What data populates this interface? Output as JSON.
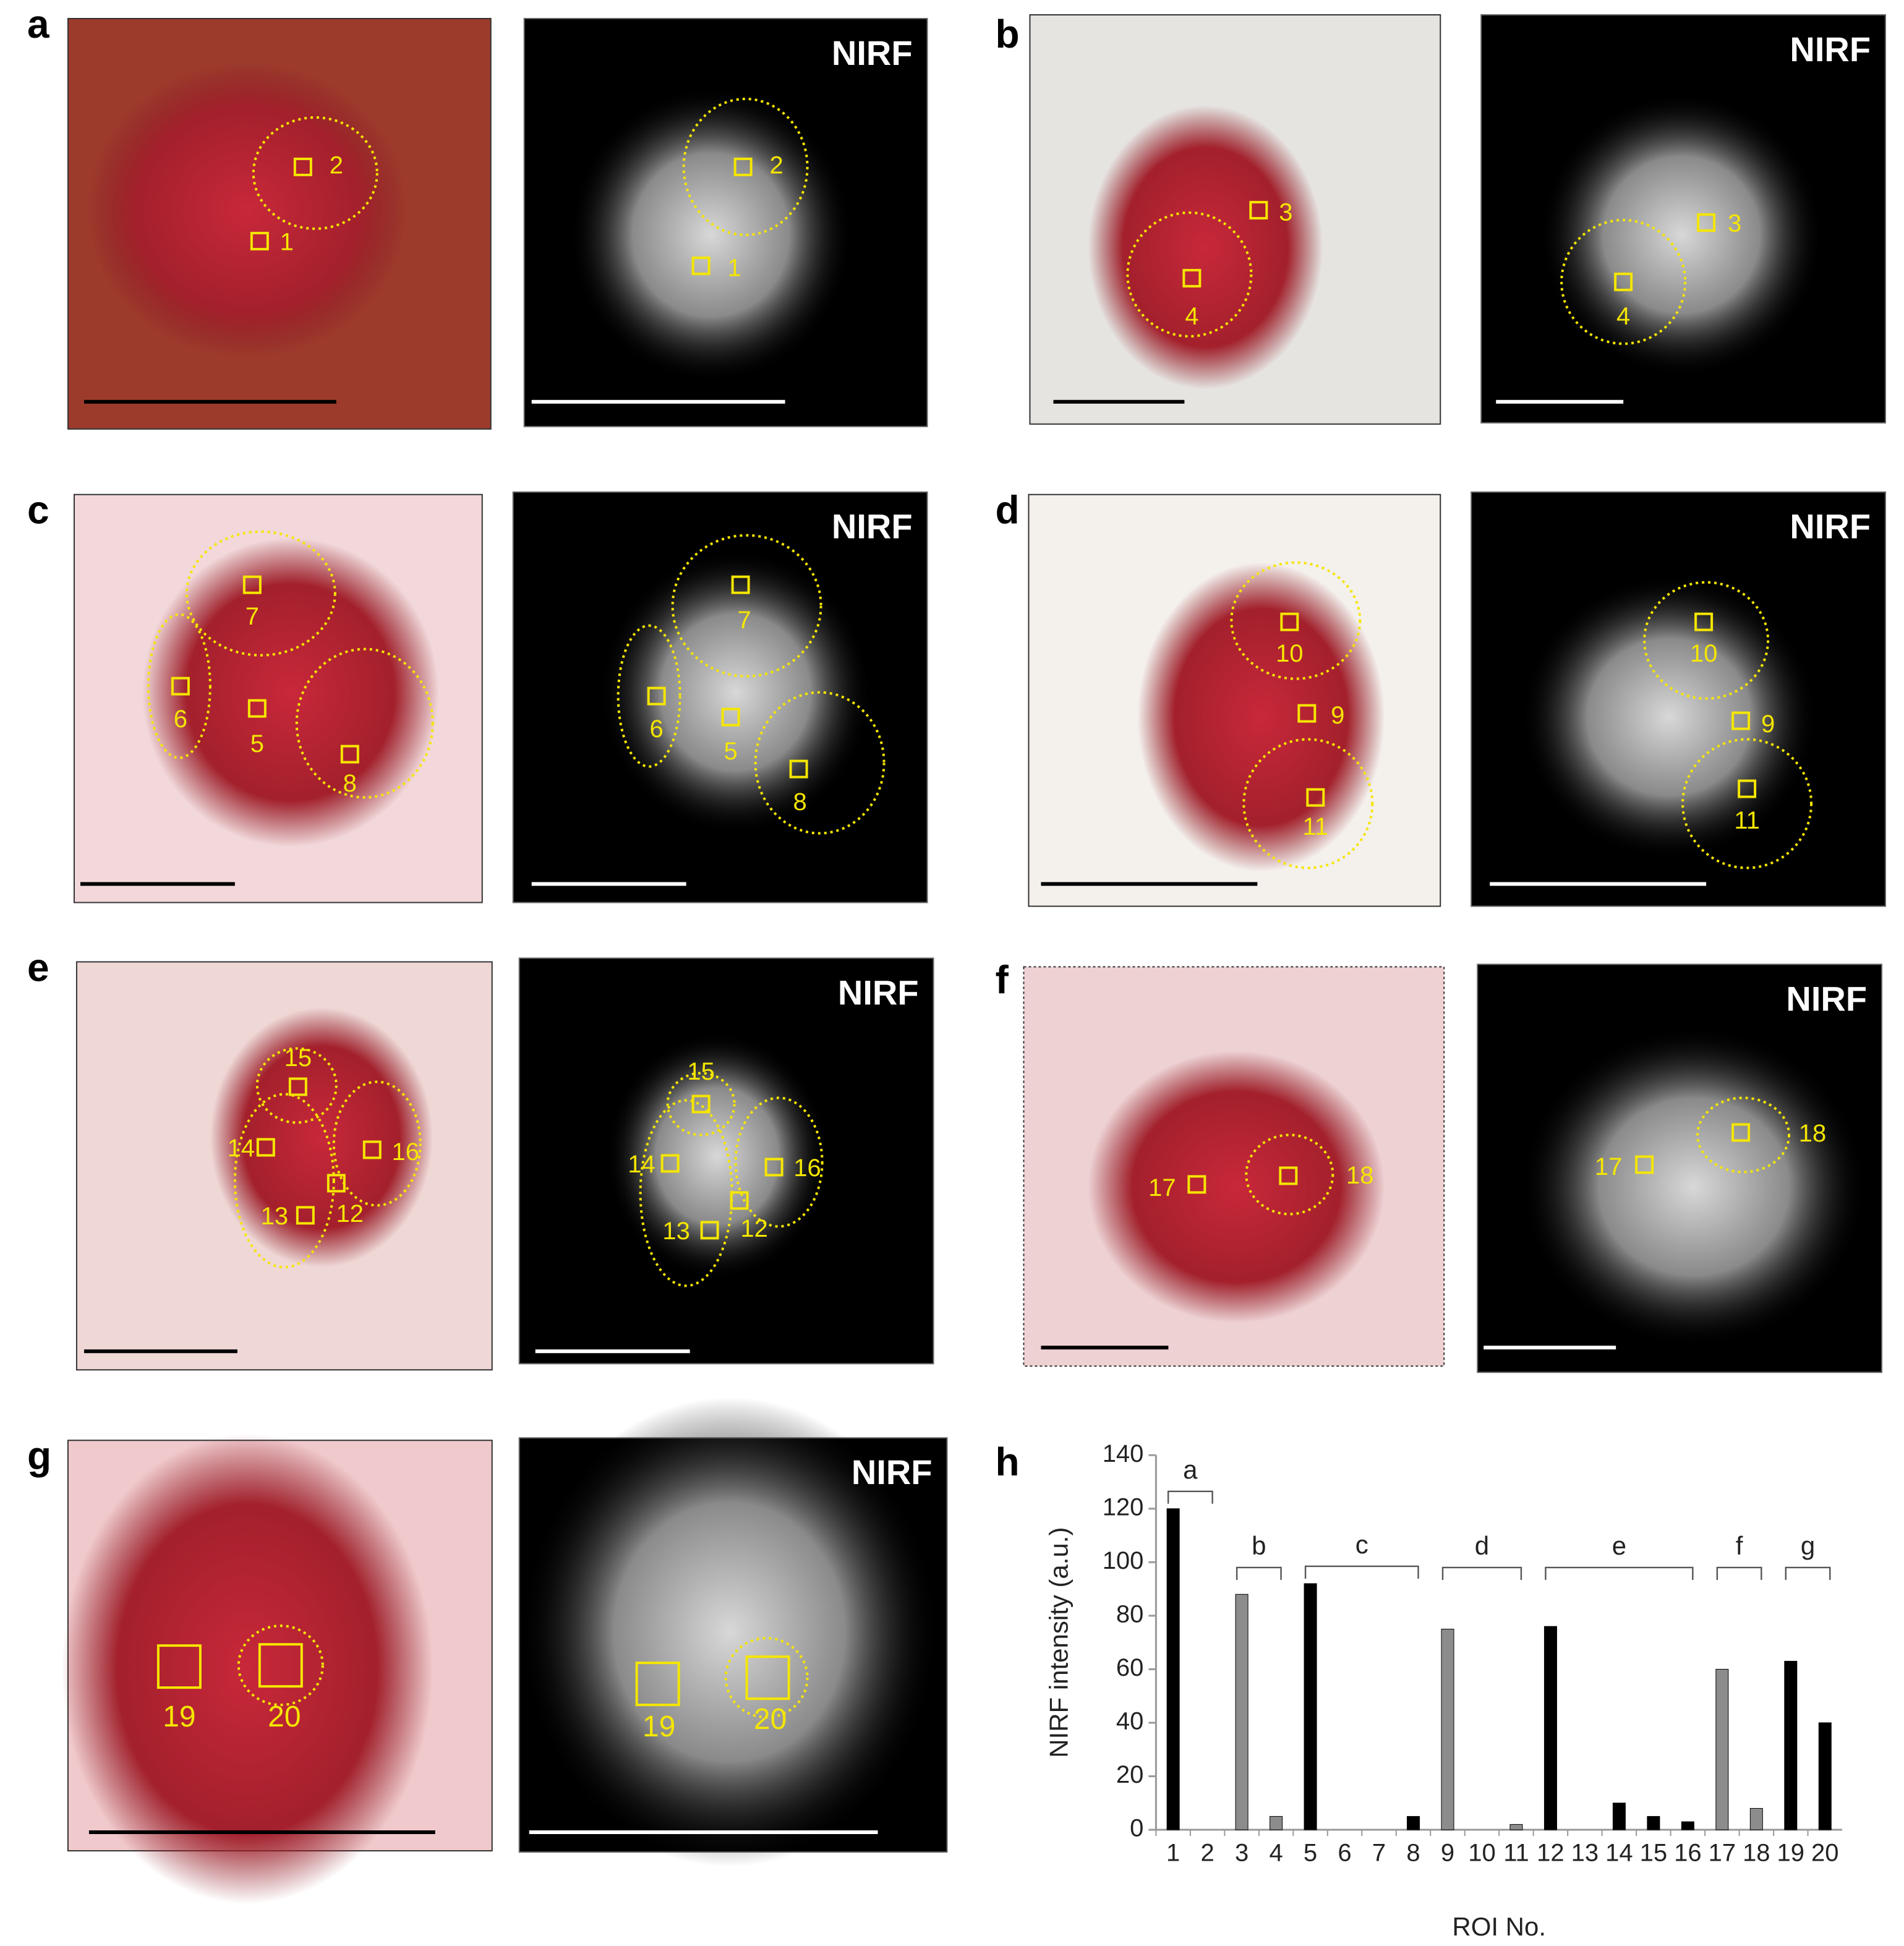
{
  "panels": [
    {
      "letter": "a",
      "nirf_label": "NIRF",
      "rois": [
        "1",
        "2"
      ]
    },
    {
      "letter": "b",
      "nirf_label": "NIRF",
      "rois": [
        "3",
        "4"
      ]
    },
    {
      "letter": "c",
      "nirf_label": "NIRF",
      "rois": [
        "7",
        "6",
        "5",
        "8"
      ]
    },
    {
      "letter": "d",
      "nirf_label": "NIRF",
      "rois": [
        "10",
        "9",
        "11"
      ]
    },
    {
      "letter": "e",
      "nirf_label": "NIRF",
      "rois": [
        "15",
        "14",
        "16",
        "12",
        "13"
      ]
    },
    {
      "letter": "f",
      "nirf_label": "NIRF",
      "rois": [
        "17",
        "18"
      ]
    },
    {
      "letter": "g",
      "nirf_label": "NIRF",
      "rois": [
        "19",
        "20"
      ]
    }
  ],
  "chart_data": {
    "type": "bar",
    "letter": "h",
    "ylabel": "NIRF intensity (a.u.)",
    "xlabel": "ROI No.",
    "categories": [
      "1",
      "2",
      "3",
      "4",
      "5",
      "6",
      "7",
      "8",
      "9",
      "10",
      "11",
      "12",
      "13",
      "14",
      "15",
      "16",
      "17",
      "18",
      "19",
      "20"
    ],
    "values": [
      120,
      0,
      88,
      5,
      92,
      0,
      0,
      5,
      75,
      0,
      2,
      76,
      0,
      10,
      5,
      3,
      60,
      8,
      63,
      40
    ],
    "colors": [
      "#000000",
      "#000000",
      "#8c8c8c",
      "#8c8c8c",
      "#000000",
      "#000000",
      "#000000",
      "#000000",
      "#8c8c8c",
      "#8c8c8c",
      "#8c8c8c",
      "#000000",
      "#000000",
      "#000000",
      "#000000",
      "#000000",
      "#8c8c8c",
      "#8c8c8c",
      "#000000",
      "#000000"
    ],
    "ylim": [
      0,
      140
    ],
    "yticks": [
      0,
      20,
      40,
      60,
      80,
      100,
      120,
      140
    ],
    "groups": [
      {
        "label": "a",
        "from": "1",
        "to": "2"
      },
      {
        "label": "b",
        "from": "3",
        "to": "4"
      },
      {
        "label": "c",
        "from": "5",
        "to": "8"
      },
      {
        "label": "d",
        "from": "9",
        "to": "11"
      },
      {
        "label": "e",
        "from": "12",
        "to": "16"
      },
      {
        "label": "f",
        "from": "17",
        "to": "18"
      },
      {
        "label": "g",
        "from": "19",
        "to": "20"
      }
    ]
  }
}
